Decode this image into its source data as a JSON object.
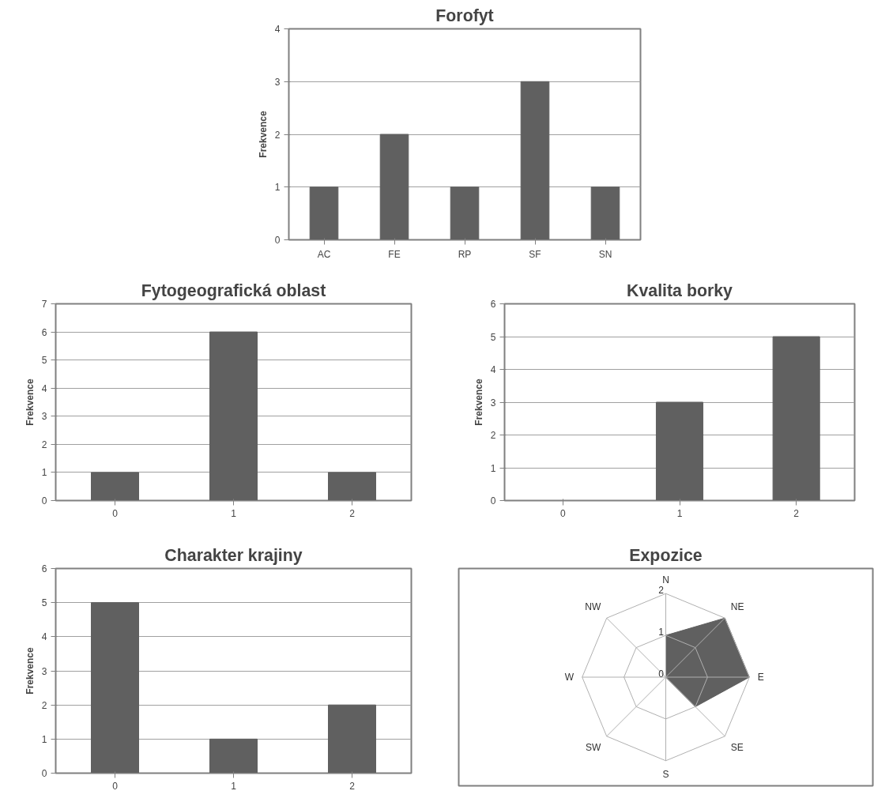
{
  "chart_data": [
    {
      "type": "bar",
      "title": "Forofyt",
      "ylabel": "Frekvence",
      "categories": [
        "AC",
        "FE",
        "RP",
        "SF",
        "SN"
      ],
      "values": [
        1,
        2,
        1,
        3,
        1
      ],
      "color": "#606060",
      "ylim": [
        0,
        4
      ],
      "yticks": [
        0,
        1,
        2,
        3,
        4
      ],
      "grid": "y"
    },
    {
      "type": "bar",
      "title": "Fytogeografická oblast",
      "ylabel": "Frekvence",
      "categories": [
        "0",
        "1",
        "2"
      ],
      "values": [
        1,
        6,
        1
      ],
      "color": "#606060",
      "ylim": [
        0,
        7
      ],
      "yticks": [
        0,
        1,
        2,
        3,
        4,
        5,
        6,
        7
      ],
      "grid": "y"
    },
    {
      "type": "bar",
      "title": "Kvalita borky",
      "ylabel": "Frekvence",
      "categories": [
        "0",
        "1",
        "2"
      ],
      "values": [
        0,
        3,
        5
      ],
      "color": "#606060",
      "ylim": [
        0,
        6
      ],
      "yticks": [
        0,
        1,
        2,
        3,
        4,
        5,
        6
      ],
      "grid": "y"
    },
    {
      "type": "bar",
      "title": "Charakter krajiny",
      "ylabel": "Frekvence",
      "categories": [
        "0",
        "1",
        "2"
      ],
      "values": [
        5,
        1,
        2
      ],
      "color": "#606060",
      "ylim": [
        0,
        6
      ],
      "yticks": [
        0,
        1,
        2,
        3,
        4,
        5,
        6
      ],
      "grid": "y"
    },
    {
      "type": "radar",
      "title": "Expozice",
      "categories": [
        "N",
        "NE",
        "E",
        "SE",
        "S",
        "SW",
        "W",
        "NW"
      ],
      "series": [
        {
          "color": "#606060",
          "values": [
            1,
            2,
            2,
            1,
            0,
            0,
            0,
            0
          ]
        }
      ],
      "ylim": [
        0,
        2
      ],
      "yticks": [
        0,
        1,
        2
      ],
      "grid": true
    }
  ]
}
